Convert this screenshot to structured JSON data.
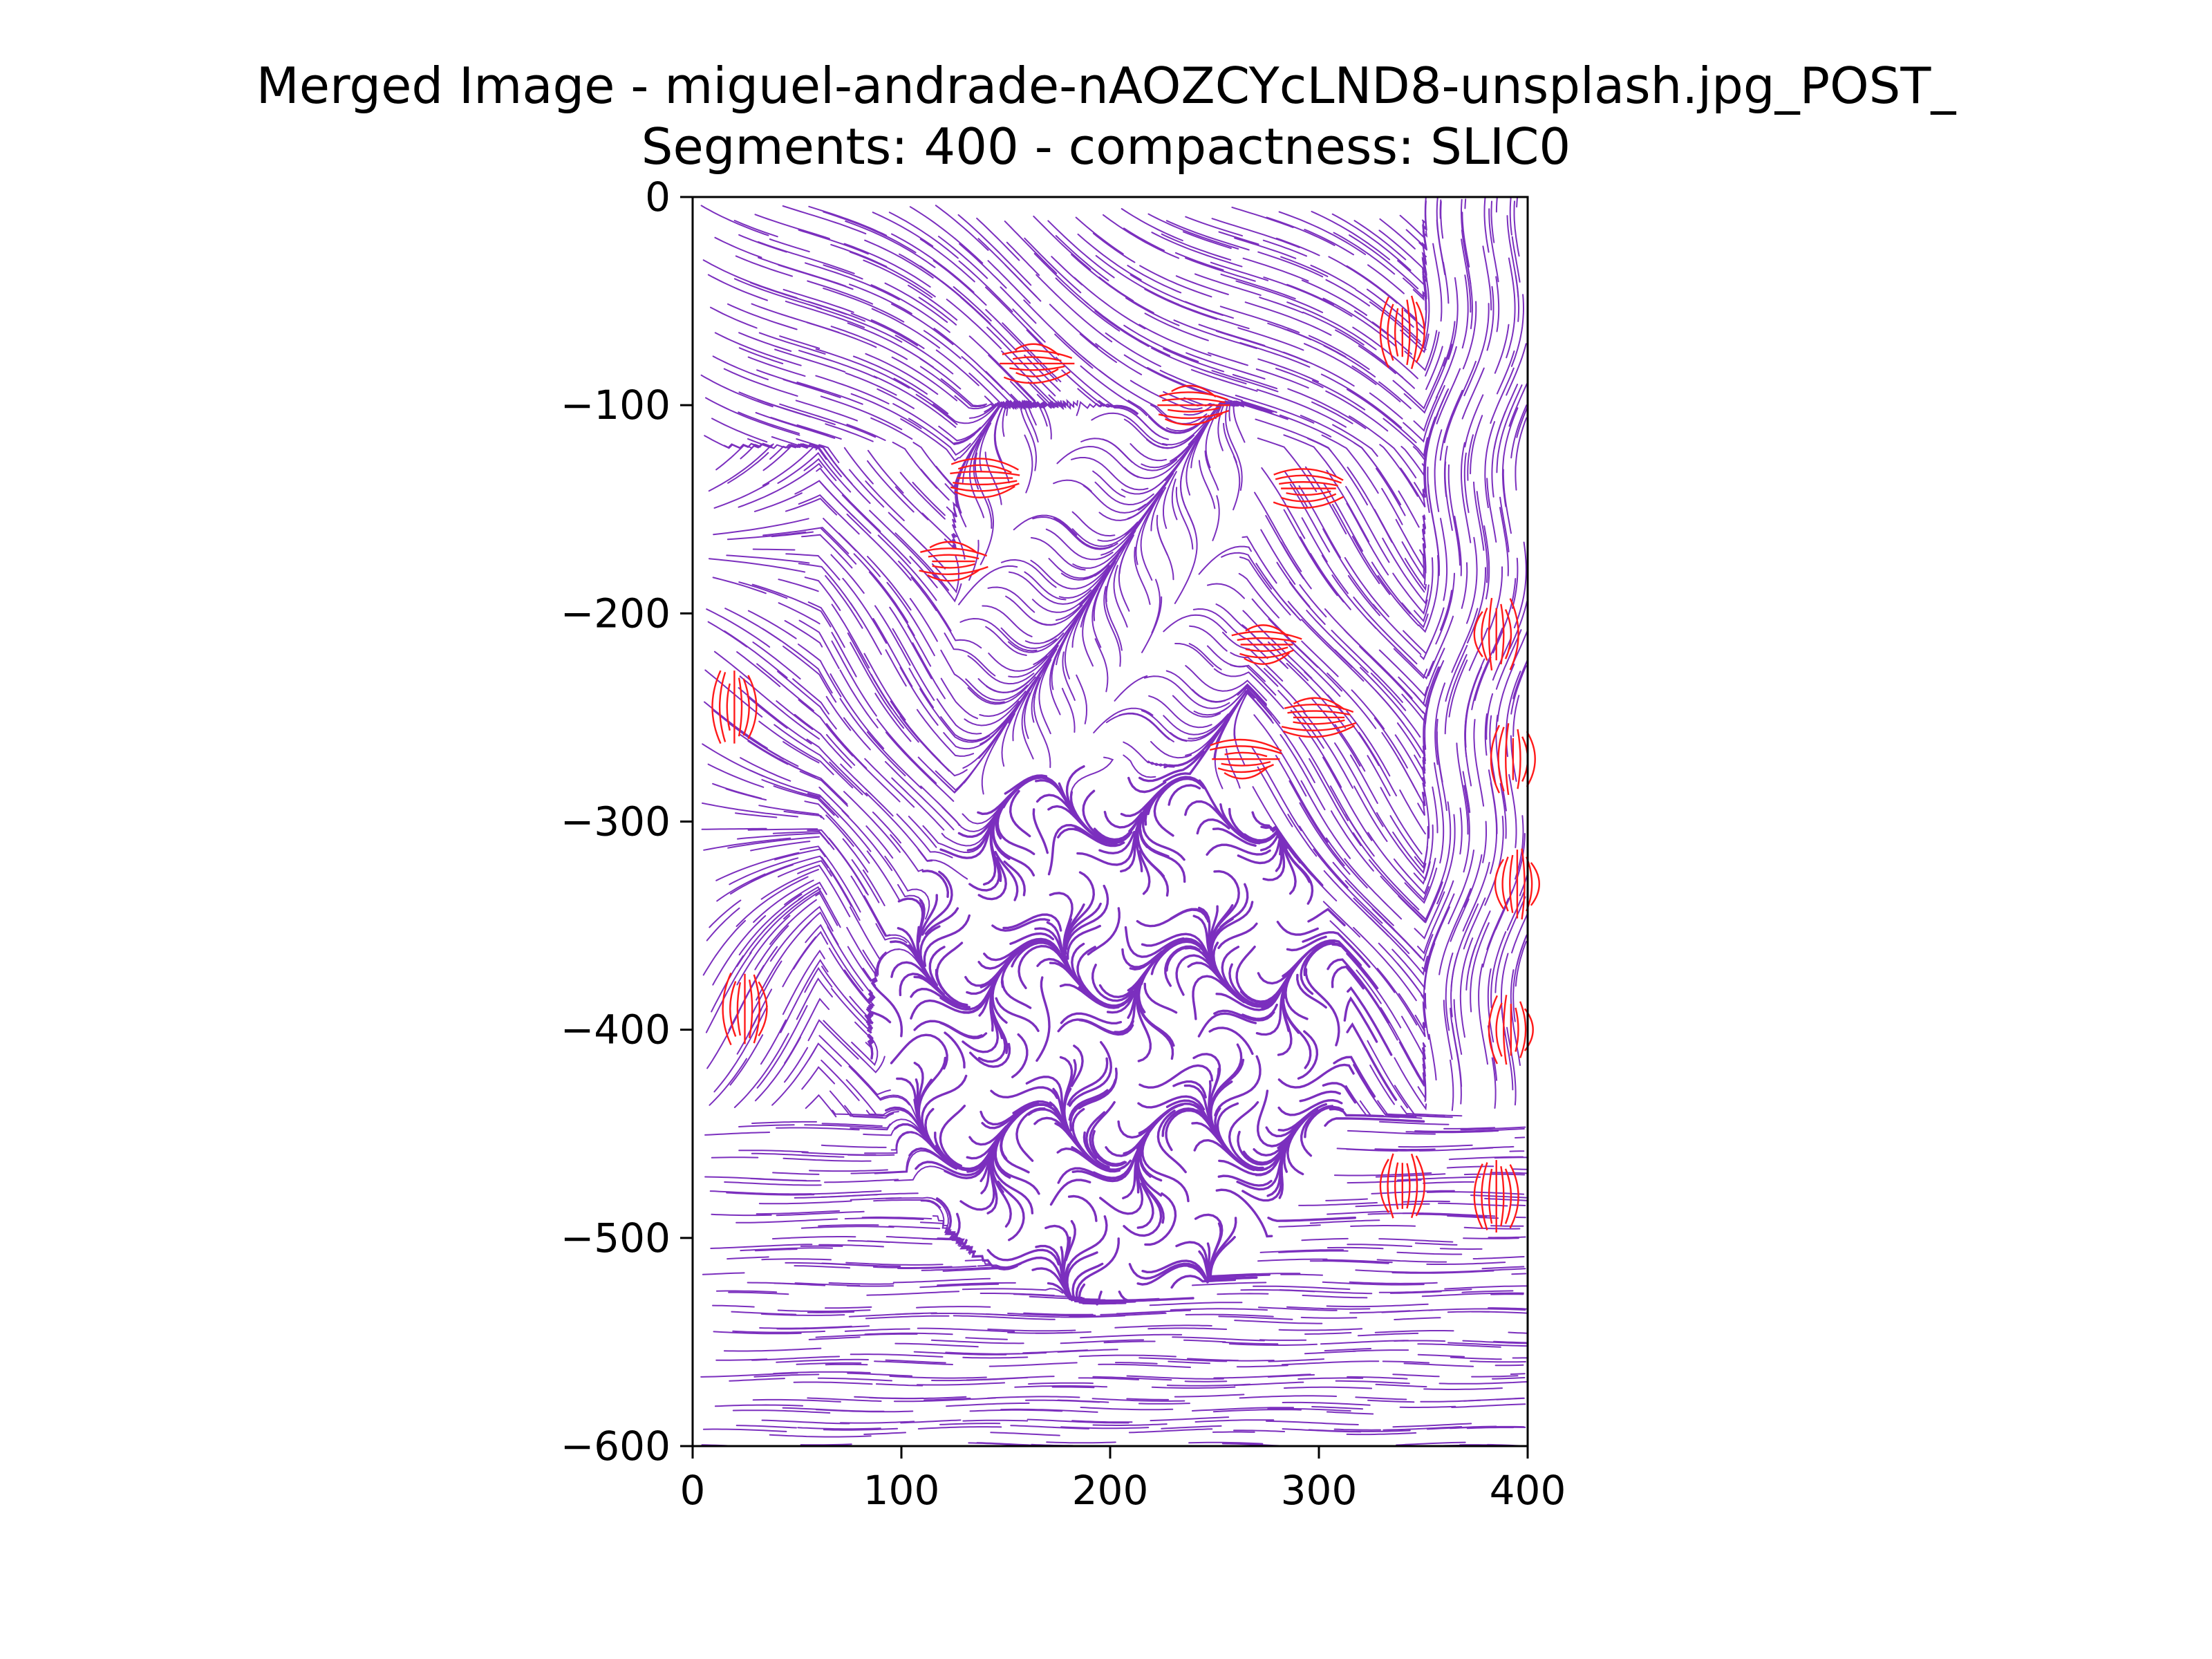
{
  "chart_data": {
    "type": "streamplot",
    "title": "Merged Image - miguel-andrade-nAOZCYcLND8-unsplash.jpg_POST_",
    "subtitle": "Segments: 400 - compactness: SLIC0",
    "xlabel": "",
    "ylabel": "",
    "xlim": [
      0,
      400
    ],
    "ylim": [
      -600,
      0
    ],
    "xticks": [
      0,
      100,
      200,
      300,
      400
    ],
    "xtick_labels": [
      "0",
      "100",
      "200",
      "300",
      "400"
    ],
    "yticks": [
      0,
      -100,
      -200,
      -300,
      -400,
      -500,
      -600
    ],
    "ytick_labels": [
      "0",
      "−100",
      "−200",
      "−300",
      "−400",
      "−500",
      "−600"
    ],
    "grid": false,
    "colors": {
      "stream": "#7b2fbe",
      "highlight": "#ff1a1a",
      "axis": "#000000"
    },
    "highlight_regions": [
      {
        "x": 165,
        "y": -80
      },
      {
        "x": 240,
        "y": -100
      },
      {
        "x": 140,
        "y": -135
      },
      {
        "x": 295,
        "y": -140
      },
      {
        "x": 125,
        "y": -175
      },
      {
        "x": 275,
        "y": -215
      },
      {
        "x": 20,
        "y": -245
      },
      {
        "x": 300,
        "y": -250
      },
      {
        "x": 265,
        "y": -270
      },
      {
        "x": 340,
        "y": -65
      },
      {
        "x": 385,
        "y": -210
      },
      {
        "x": 393,
        "y": -270
      },
      {
        "x": 395,
        "y": -330
      },
      {
        "x": 25,
        "y": -390
      },
      {
        "x": 392,
        "y": -400
      },
      {
        "x": 340,
        "y": -475
      },
      {
        "x": 385,
        "y": -480
      }
    ]
  }
}
